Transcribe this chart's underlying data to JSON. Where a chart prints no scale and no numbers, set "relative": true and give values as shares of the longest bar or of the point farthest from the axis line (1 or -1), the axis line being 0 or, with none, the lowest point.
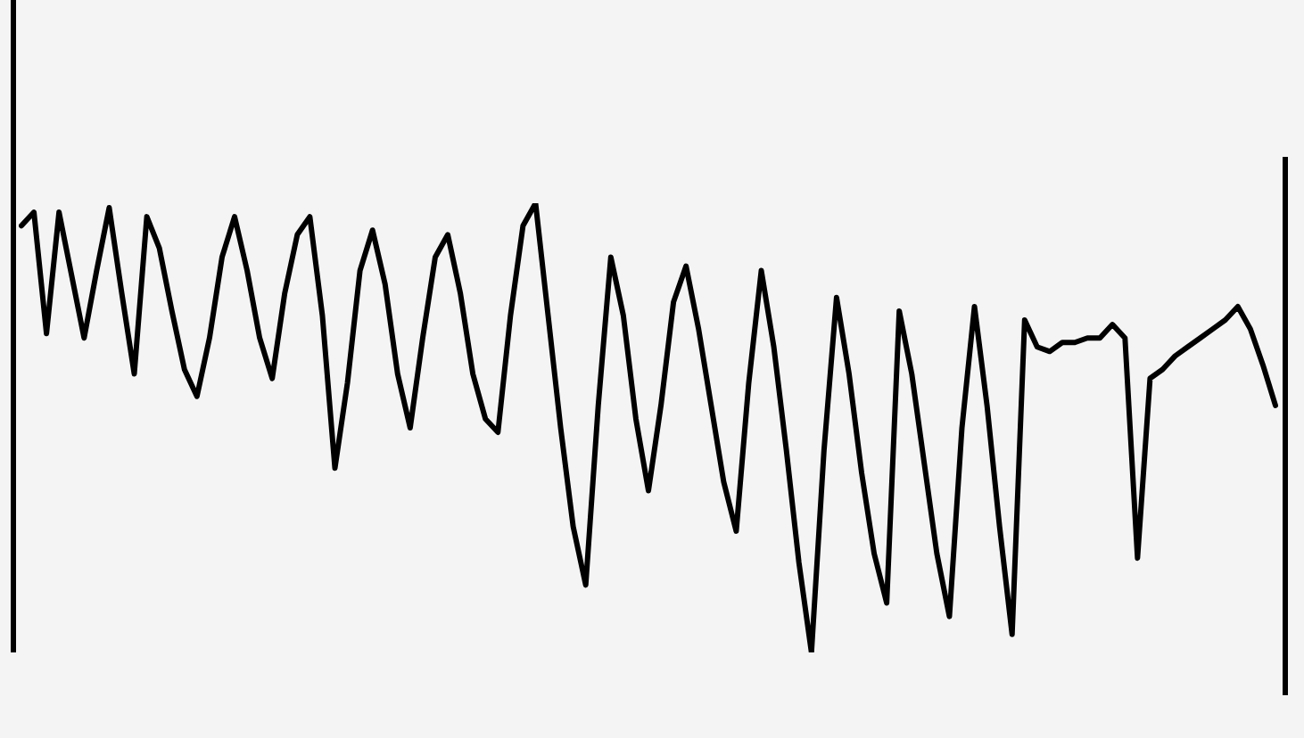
{
  "chart_data": {
    "type": "line",
    "relative": true,
    "legend": false,
    "marker": "none",
    "line_style": "solid",
    "categories": [
      null,
      null,
      null,
      null,
      null,
      null,
      null,
      null,
      null,
      null,
      null,
      null,
      null,
      null,
      null,
      null,
      null,
      null,
      null,
      null,
      null,
      null,
      null,
      null,
      null,
      null,
      null,
      null,
      null,
      null,
      null,
      null,
      null,
      null,
      null,
      null,
      null,
      null,
      null,
      null,
      null,
      null,
      null,
      null,
      null,
      null,
      null,
      null,
      null,
      null,
      null,
      null,
      null,
      null,
      null,
      null,
      null,
      null,
      null,
      null,
      null,
      null,
      null,
      null,
      null,
      null,
      null,
      null,
      null,
      null,
      null,
      null,
      null,
      null,
      null,
      null,
      null,
      null,
      null,
      null,
      null,
      null,
      null,
      null,
      null,
      null,
      null,
      null,
      null,
      null,
      null,
      null,
      null,
      null,
      null,
      null,
      null,
      null,
      null,
      null,
      null
    ],
    "series": [
      {
        "color": "#000000",
        "values": [
          0.95,
          0.98,
          0.71,
          0.98,
          0.84,
          0.7,
          0.85,
          0.99,
          0.8,
          0.62,
          0.97,
          0.9,
          0.76,
          0.63,
          0.57,
          0.7,
          0.88,
          0.97,
          0.85,
          0.7,
          0.61,
          0.8,
          0.93,
          0.97,
          0.75,
          0.41,
          0.6,
          0.85,
          0.94,
          0.82,
          0.62,
          0.5,
          0.7,
          0.88,
          0.93,
          0.8,
          0.62,
          0.52,
          0.49,
          0.75,
          0.95,
          1,
          0.75,
          0.5,
          0.28,
          0.15,
          0.55,
          0.88,
          0.75,
          0.52,
          0.36,
          0.55,
          0.78,
          0.86,
          0.72,
          0.55,
          0.38,
          0.27,
          0.6,
          0.85,
          0.68,
          0.45,
          0.2,
          0,
          0.45,
          0.79,
          0.62,
          0.4,
          0.22,
          0.11,
          0.76,
          0.62,
          0.42,
          0.22,
          0.08,
          0.5,
          0.77,
          0.55,
          0.28,
          0.04,
          0.74,
          0.68,
          0.67,
          0.69,
          0.69,
          0.7,
          0.7,
          0.73,
          0.7,
          0.21,
          0.61,
          0.63,
          0.66,
          0.68,
          0.7,
          0.72,
          0.74,
          0.77,
          0.72,
          0.64,
          0.55
        ]
      }
    ]
  }
}
